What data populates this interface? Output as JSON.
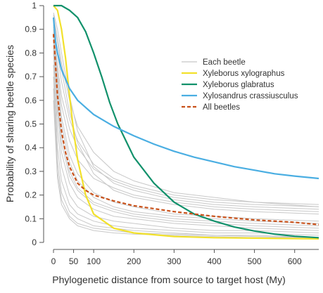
{
  "chart_data": {
    "type": "line",
    "title": "",
    "xlabel": "Phylogenetic distance from source to target host (My)",
    "ylabel": "Probability of sharing beetle species",
    "xlim": [
      0,
      660
    ],
    "ylim": [
      0,
      1
    ],
    "x_ticks": [
      0,
      50,
      100,
      200,
      300,
      400,
      500,
      600
    ],
    "x_tick_labels": [
      "0",
      "50",
      "100",
      "200",
      "300",
      "400",
      "500",
      "600"
    ],
    "y_ticks": [
      0,
      0.1,
      0.2,
      0.3,
      0.4,
      0.5,
      0.6,
      0.7,
      0.8,
      0.9,
      1
    ],
    "y_tick_labels": [
      "0",
      "0.1",
      "0.2",
      "0.3",
      "0.4",
      "0.5",
      "0.6",
      "0.7",
      "0.8",
      "0.9",
      "1"
    ],
    "grid": false,
    "legend_position": "top-right",
    "legend": [
      {
        "label": "Each beetle",
        "color": "#c8c8c8",
        "style": "solid"
      },
      {
        "label": "Xyleborus xylographus",
        "color": "#f2e12c",
        "style": "solid"
      },
      {
        "label": "Xyleborus glabratus",
        "color": "#11916b",
        "style": "solid"
      },
      {
        "label": "Xylosandrus crassiusculus",
        "color": "#4aaee2",
        "style": "solid"
      },
      {
        "label": "All beetles",
        "color": "#c8511a",
        "style": "dashed"
      }
    ],
    "background_series": [
      {
        "x": [
          0,
          10,
          20,
          40,
          60,
          100,
          150,
          200,
          300,
          400,
          500,
          660
        ],
        "values": [
          0.96,
          0.86,
          0.76,
          0.6,
          0.49,
          0.38,
          0.3,
          0.26,
          0.21,
          0.19,
          0.17,
          0.15
        ]
      },
      {
        "x": [
          0,
          10,
          20,
          40,
          60,
          100,
          150,
          200,
          300,
          400,
          500,
          660
        ],
        "values": [
          0.93,
          0.8,
          0.68,
          0.52,
          0.43,
          0.33,
          0.27,
          0.24,
          0.2,
          0.18,
          0.17,
          0.16
        ]
      },
      {
        "x": [
          0,
          10,
          20,
          40,
          60,
          100,
          150,
          200,
          300,
          400,
          500,
          660
        ],
        "values": [
          0.9,
          0.72,
          0.58,
          0.43,
          0.35,
          0.27,
          0.23,
          0.2,
          0.17,
          0.15,
          0.14,
          0.13
        ]
      },
      {
        "x": [
          0,
          10,
          20,
          40,
          60,
          100,
          150,
          200,
          300,
          400,
          500,
          660
        ],
        "values": [
          0.92,
          0.7,
          0.53,
          0.37,
          0.29,
          0.21,
          0.17,
          0.15,
          0.12,
          0.11,
          0.1,
          0.09
        ]
      },
      {
        "x": [
          0,
          10,
          20,
          40,
          60,
          100,
          150,
          200,
          300,
          400,
          500,
          660
        ],
        "values": [
          0.88,
          0.62,
          0.45,
          0.3,
          0.23,
          0.17,
          0.14,
          0.12,
          0.1,
          0.09,
          0.08,
          0.07
        ]
      },
      {
        "x": [
          0,
          10,
          20,
          40,
          60,
          100,
          150,
          200,
          300,
          400,
          500,
          660
        ],
        "values": [
          0.85,
          0.55,
          0.38,
          0.25,
          0.19,
          0.14,
          0.11,
          0.1,
          0.08,
          0.07,
          0.06,
          0.05
        ]
      },
      {
        "x": [
          0,
          10,
          20,
          40,
          60,
          100,
          150,
          200,
          300,
          400,
          500,
          660
        ],
        "values": [
          0.8,
          0.48,
          0.32,
          0.2,
          0.15,
          0.11,
          0.09,
          0.08,
          0.06,
          0.05,
          0.05,
          0.04
        ]
      },
      {
        "x": [
          0,
          10,
          20,
          40,
          60,
          100,
          150,
          200,
          300,
          400,
          500,
          660
        ],
        "values": [
          0.75,
          0.4,
          0.26,
          0.16,
          0.12,
          0.09,
          0.07,
          0.06,
          0.05,
          0.04,
          0.04,
          0.03
        ]
      },
      {
        "x": [
          0,
          10,
          20,
          40,
          60,
          100,
          150,
          200,
          300,
          400,
          500,
          660
        ],
        "values": [
          0.7,
          0.34,
          0.21,
          0.13,
          0.1,
          0.07,
          0.06,
          0.05,
          0.04,
          0.03,
          0.03,
          0.02
        ]
      },
      {
        "x": [
          0,
          10,
          20,
          40,
          60,
          100,
          150,
          200,
          300,
          400,
          500,
          660
        ],
        "values": [
          0.6,
          0.27,
          0.16,
          0.1,
          0.07,
          0.05,
          0.04,
          0.035,
          0.03,
          0.025,
          0.02,
          0.02
        ]
      },
      {
        "x": [
          0,
          10,
          20,
          40,
          60,
          100,
          150,
          200,
          300,
          400,
          500,
          660
        ],
        "values": [
          0.95,
          0.85,
          0.73,
          0.55,
          0.42,
          0.29,
          0.22,
          0.19,
          0.16,
          0.14,
          0.13,
          0.12
        ]
      },
      {
        "x": [
          0,
          10,
          20,
          40,
          60,
          100,
          150,
          200,
          300,
          400,
          500,
          660
        ],
        "values": [
          0.97,
          0.9,
          0.8,
          0.62,
          0.47,
          0.32,
          0.25,
          0.22,
          0.18,
          0.16,
          0.15,
          0.14
        ]
      },
      {
        "x": [
          0,
          10,
          20,
          40,
          60,
          100,
          150,
          200,
          300,
          400,
          500,
          660
        ],
        "values": [
          0.89,
          0.66,
          0.5,
          0.34,
          0.26,
          0.19,
          0.15,
          0.13,
          0.11,
          0.1,
          0.09,
          0.08
        ]
      },
      {
        "x": [
          0,
          10,
          20,
          40,
          60,
          100,
          150,
          200,
          300,
          400,
          500,
          660
        ],
        "values": [
          0.82,
          0.58,
          0.42,
          0.28,
          0.22,
          0.16,
          0.13,
          0.11,
          0.09,
          0.08,
          0.07,
          0.06
        ]
      },
      {
        "x": [
          0,
          10,
          20,
          40,
          60,
          100,
          150,
          200,
          300,
          400,
          500,
          660
        ],
        "values": [
          0.91,
          0.75,
          0.62,
          0.48,
          0.4,
          0.31,
          0.26,
          0.23,
          0.19,
          0.17,
          0.16,
          0.15
        ]
      },
      {
        "x": [
          0,
          10,
          20,
          40,
          60,
          100,
          150,
          200,
          300,
          400,
          500,
          660
        ],
        "values": [
          0.65,
          0.3,
          0.18,
          0.11,
          0.08,
          0.06,
          0.05,
          0.04,
          0.035,
          0.03,
          0.025,
          0.02
        ]
      }
    ],
    "series": [
      {
        "name": "Xyleborus xylographus",
        "color": "#f2e12c",
        "dashed": false,
        "x": [
          0,
          10,
          20,
          30,
          40,
          50,
          60,
          80,
          100,
          150,
          200,
          300,
          400,
          500,
          660
        ],
        "values": [
          1.0,
          0.98,
          0.9,
          0.78,
          0.62,
          0.47,
          0.35,
          0.2,
          0.12,
          0.06,
          0.04,
          0.025,
          0.02,
          0.018,
          0.015
        ]
      },
      {
        "name": "Xyleborus glabratus",
        "color": "#11916b",
        "dashed": false,
        "x": [
          0,
          20,
          40,
          60,
          80,
          100,
          120,
          140,
          160,
          180,
          200,
          250,
          300,
          350,
          400,
          450,
          500,
          550,
          600,
          660
        ],
        "values": [
          1.0,
          1.0,
          0.98,
          0.95,
          0.89,
          0.8,
          0.7,
          0.59,
          0.5,
          0.43,
          0.36,
          0.25,
          0.17,
          0.12,
          0.09,
          0.065,
          0.048,
          0.035,
          0.026,
          0.02
        ]
      },
      {
        "name": "Xylosandrus crassiusculus",
        "color": "#4aaee2",
        "dashed": false,
        "x": [
          0,
          5,
          10,
          20,
          40,
          60,
          80,
          100,
          150,
          200,
          250,
          300,
          350,
          400,
          450,
          500,
          550,
          600,
          660
        ],
        "values": [
          0.95,
          0.85,
          0.8,
          0.73,
          0.65,
          0.6,
          0.57,
          0.54,
          0.49,
          0.45,
          0.415,
          0.385,
          0.36,
          0.34,
          0.32,
          0.305,
          0.29,
          0.28,
          0.27
        ]
      },
      {
        "name": "All beetles",
        "color": "#c8511a",
        "dashed": true,
        "x": [
          0,
          5,
          10,
          20,
          30,
          40,
          60,
          80,
          100,
          150,
          200,
          300,
          400,
          500,
          600,
          660
        ],
        "values": [
          0.88,
          0.75,
          0.62,
          0.47,
          0.38,
          0.32,
          0.25,
          0.22,
          0.2,
          0.175,
          0.155,
          0.13,
          0.11,
          0.095,
          0.085,
          0.075
        ]
      }
    ]
  }
}
